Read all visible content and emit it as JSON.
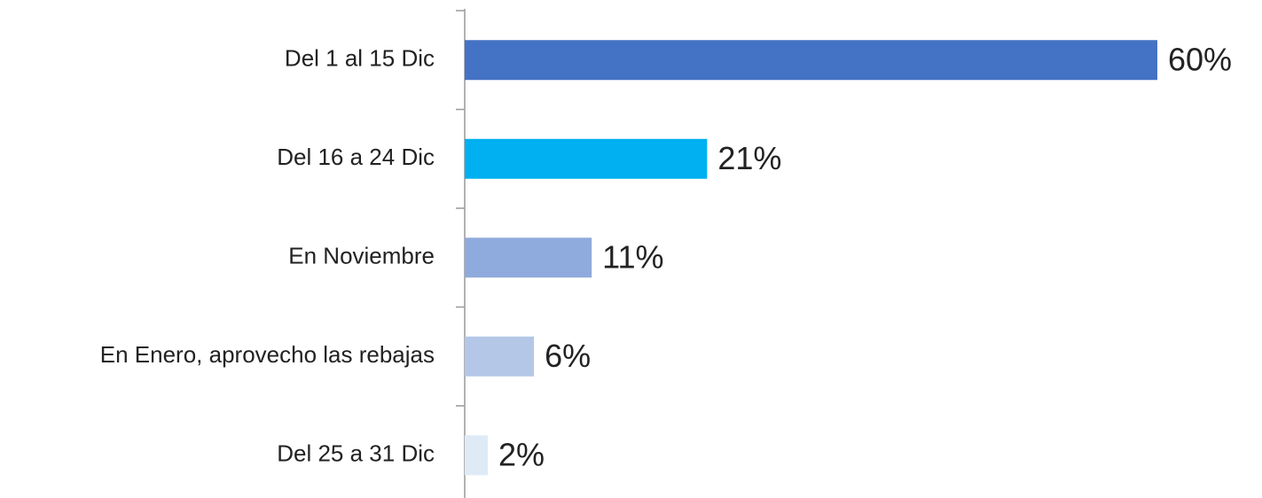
{
  "chart_data": {
    "type": "barh",
    "categories": [
      "Del 1 al 15 Dic",
      "Del 16 a 24 Dic",
      "En Noviembre",
      "En Enero, aprovecho las rebajas",
      "Del 25 a 31 Dic"
    ],
    "values": [
      60,
      21,
      11,
      6,
      2
    ],
    "value_labels": [
      "60%",
      "21%",
      "11%",
      "6%",
      "2%"
    ],
    "colors": [
      "#4472c4",
      "#00b0f0",
      "#8faadc",
      "#b4c7e7",
      "#deebf7"
    ]
  }
}
